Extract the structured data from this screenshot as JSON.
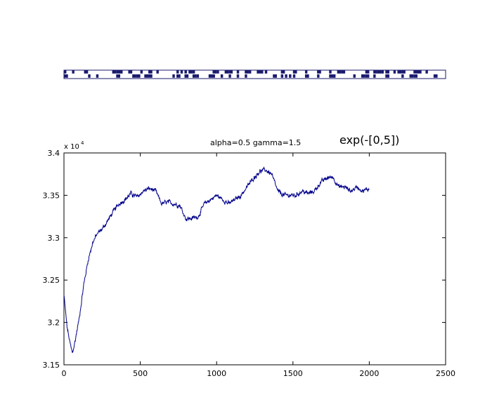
{
  "colors": {
    "series": "#00008b",
    "axes": "#000000",
    "strip": "#1a1a6e"
  },
  "chart_data": [
    {
      "type": "heatmap",
      "description_strip": "binary pattern strip",
      "rows": 2,
      "pattern_seed": 7,
      "columns": 95
    },
    {
      "type": "line",
      "annotations": [
        {
          "text": "alpha=0.5  gamma=1.5",
          "style": "small"
        },
        {
          "text": "exp(-[0,5])",
          "style": "large"
        }
      ],
      "y_exponent": "x 10",
      "y_exponent_power": "4",
      "xlim": [
        0,
        2500
      ],
      "ylim": [
        3.15,
        3.4
      ],
      "x_ticks": [
        0,
        500,
        1000,
        1500,
        2000,
        2500
      ],
      "y_ticks": [
        3.15,
        3.2,
        3.25,
        3.3,
        3.35,
        3.4
      ],
      "x_tick_labels": [
        "0",
        "500",
        "1000",
        "1500",
        "2000",
        "2500"
      ],
      "y_tick_labels": [
        "3.15",
        "3.2",
        "3.25",
        "3.3",
        "3.35",
        "3.4"
      ],
      "grid": false,
      "series_keypoints": {
        "x": [
          0,
          20,
          40,
          55,
          70,
          100,
          130,
          160,
          190,
          220,
          250,
          280,
          320,
          360,
          400,
          440,
          480,
          520,
          560,
          600,
          640,
          680,
          720,
          760,
          800,
          840,
          880,
          920,
          960,
          1000,
          1040,
          1080,
          1120,
          1160,
          1200,
          1240,
          1280,
          1320,
          1360,
          1400,
          1440,
          1480,
          1520,
          1560,
          1600,
          1640,
          1680,
          1720,
          1760,
          1800,
          1840,
          1880,
          1920,
          1960,
          2000
        ],
        "y": [
          3.232,
          3.195,
          3.175,
          3.164,
          3.175,
          3.205,
          3.245,
          3.275,
          3.295,
          3.305,
          3.31,
          3.318,
          3.33,
          3.34,
          3.345,
          3.352,
          3.348,
          3.355,
          3.358,
          3.355,
          3.34,
          3.342,
          3.34,
          3.338,
          3.322,
          3.323,
          3.325,
          3.34,
          3.345,
          3.35,
          3.345,
          3.34,
          3.345,
          3.35,
          3.36,
          3.37,
          3.378,
          3.38,
          3.375,
          3.355,
          3.35,
          3.35,
          3.35,
          3.355,
          3.352,
          3.355,
          3.365,
          3.37,
          3.372,
          3.36,
          3.36,
          3.355,
          3.36,
          3.355,
          3.358
        ]
      },
      "noise_amplitude": 0.0035
    }
  ]
}
